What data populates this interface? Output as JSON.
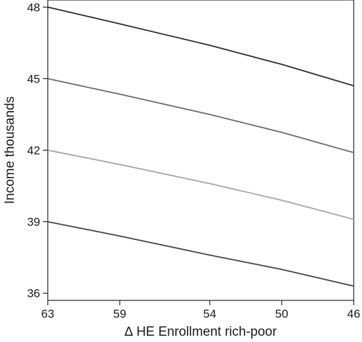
{
  "chart_data": {
    "type": "line",
    "title": "",
    "xlabel": "∆ HE Enrollment rich-poor",
    "ylabel": "Income thousands",
    "x_ticks": [
      "63",
      "59",
      "54",
      "50",
      "46"
    ],
    "y_ticks": [
      "36",
      "39",
      "42",
      "45",
      "48"
    ],
    "xlim": [
      63,
      46
    ],
    "ylim": [
      35.7,
      48.3
    ],
    "grid": false,
    "legend": "none",
    "series": [
      {
        "color": "#2b2b2b",
        "x": [
          63,
          59,
          54,
          50,
          46
        ],
        "y": [
          48.0,
          47.3,
          46.4,
          45.6,
          44.7
        ]
      },
      {
        "color": "#6a6a6a",
        "x": [
          63,
          59,
          54,
          50,
          46
        ],
        "y": [
          45.0,
          44.35,
          43.5,
          42.75,
          41.9
        ]
      },
      {
        "color": "#a3a3a3",
        "x": [
          63,
          59,
          54,
          50,
          46
        ],
        "y": [
          42.0,
          41.4,
          40.6,
          39.9,
          39.1
        ]
      },
      {
        "color": "#444444",
        "x": [
          63,
          59,
          54,
          50,
          46
        ],
        "y": [
          39.0,
          38.4,
          37.6,
          37.0,
          36.3
        ]
      }
    ]
  }
}
